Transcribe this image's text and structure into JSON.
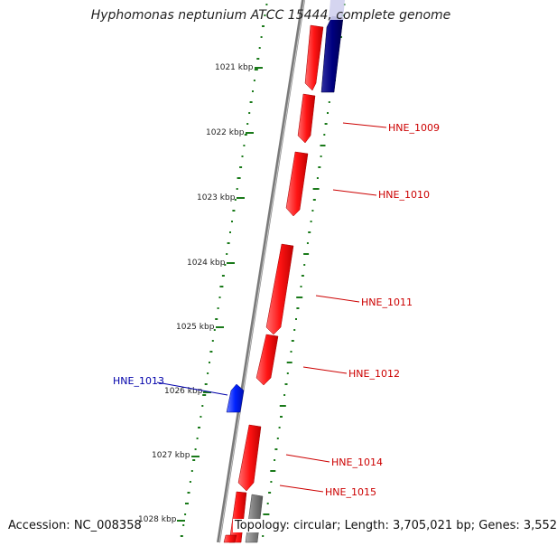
{
  "title": "Hyphomonas neptunium ATCC 15444, complete genome",
  "accession": "Accession: NC_008358",
  "summary": "Topology: circular; Length: 3,705,021 bp; Genes: 3,552",
  "colors": {
    "forward_gene": "#ff1a1a",
    "reverse_gene": "#000080",
    "highlight_gene": "#0022ff",
    "other_feature": "#808080",
    "gc_ticks": "#1a7a1a",
    "label_red": "#cc0000",
    "label_blue": "#0000aa"
  },
  "ruler": [
    {
      "label": "1021 kbp"
    },
    {
      "label": "1022 kbp"
    },
    {
      "label": "1023 kbp"
    },
    {
      "label": "1024 kbp"
    },
    {
      "label": "1025 kbp"
    },
    {
      "label": "1026 kbp"
    },
    {
      "label": "1027 kbp"
    },
    {
      "label": "1028 kbp"
    }
  ],
  "gene_labels": [
    {
      "name": "HNE_1009"
    },
    {
      "name": "HNE_1010"
    },
    {
      "name": "HNE_1011"
    },
    {
      "name": "HNE_1012"
    },
    {
      "name": "HNE_1013"
    },
    {
      "name": "HNE_1014"
    },
    {
      "name": "HNE_1015"
    }
  ]
}
